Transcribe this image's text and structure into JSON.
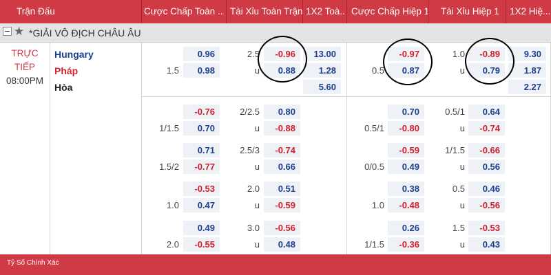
{
  "header": {
    "columns": [
      "Trận Đấu",
      "Cược Chấp Toàn ...",
      "Tài Xỉu Toàn Trận",
      "1X2 Toà...",
      "Cược Chấp Hiệp 1",
      "Tài Xỉu Hiệp 1",
      "1X2 Hiệ..."
    ]
  },
  "league": {
    "name": "*GIẢI VÔ ĐỊCH CHÂU ÂU",
    "star_icon": "star-icon"
  },
  "match": {
    "status_line1": "TRỰC",
    "status_line2": "TIẾP",
    "time": "08:00PM",
    "home": "Hungary",
    "away": "Pháp",
    "draw": "Hòa",
    "home_color": "#1c3f8f",
    "away_color": "#d2202b"
  },
  "markets": [
    {
      "ah_ft": {
        "line_top": "",
        "top": "0.96",
        "line_bot": "1.5",
        "bot": "0.98"
      },
      "ou_ft": {
        "line_top": "2.5",
        "top": "-0.96",
        "line_bot": "u",
        "bot": "0.88"
      },
      "x12_ft": [
        "13.00",
        "1.28",
        "5.60"
      ],
      "ah_h1": {
        "line_top": "",
        "top": "-0.97",
        "line_bot": "0.5",
        "bot": "0.87"
      },
      "ou_h1": {
        "line_top": "1.0",
        "top": "-0.89",
        "line_bot": "u",
        "bot": "0.79"
      },
      "x12_h1": [
        "9.30",
        "1.87",
        "2.27"
      ]
    },
    {
      "ah_ft": {
        "line_top": "",
        "top": "-0.76",
        "line_bot": "1/1.5",
        "bot": "0.70"
      },
      "ou_ft": {
        "line_top": "2/2.5",
        "top": "0.80",
        "line_bot": "u",
        "bot": "-0.88"
      },
      "ah_h1": {
        "line_top": "",
        "top": "0.70",
        "line_bot": "0.5/1",
        "bot": "-0.80"
      },
      "ou_h1": {
        "line_top": "0.5/1",
        "top": "0.64",
        "line_bot": "u",
        "bot": "-0.74"
      }
    },
    {
      "ah_ft": {
        "line_top": "",
        "top": "0.71",
        "line_bot": "1.5/2",
        "bot": "-0.77"
      },
      "ou_ft": {
        "line_top": "2.5/3",
        "top": "-0.74",
        "line_bot": "u",
        "bot": "0.66"
      },
      "ah_h1": {
        "line_top": "",
        "top": "-0.59",
        "line_bot": "0/0.5",
        "bot": "0.49"
      },
      "ou_h1": {
        "line_top": "1/1.5",
        "top": "-0.66",
        "line_bot": "u",
        "bot": "0.56"
      }
    },
    {
      "ah_ft": {
        "line_top": "",
        "top": "-0.53",
        "line_bot": "1.0",
        "bot": "0.47"
      },
      "ou_ft": {
        "line_top": "2.0",
        "top": "0.51",
        "line_bot": "u",
        "bot": "-0.59"
      },
      "ah_h1": {
        "line_top": "",
        "top": "0.38",
        "line_bot": "1.0",
        "bot": "-0.48"
      },
      "ou_h1": {
        "line_top": "0.5",
        "top": "0.46",
        "line_bot": "u",
        "bot": "-0.56"
      }
    },
    {
      "ah_ft": {
        "line_top": "",
        "top": "0.49",
        "line_bot": "2.0",
        "bot": "-0.55"
      },
      "ou_ft": {
        "line_top": "3.0",
        "top": "-0.56",
        "line_bot": "u",
        "bot": "0.48"
      },
      "ah_h1": {
        "line_top": "",
        "top": "0.26",
        "line_bot": "1/1.5",
        "bot": "-0.36"
      },
      "ou_h1": {
        "line_top": "1.5",
        "top": "-0.53",
        "line_bot": "u",
        "bot": "0.43"
      }
    }
  ],
  "footer": {
    "title": "Tỷ Số Chính Xác"
  }
}
